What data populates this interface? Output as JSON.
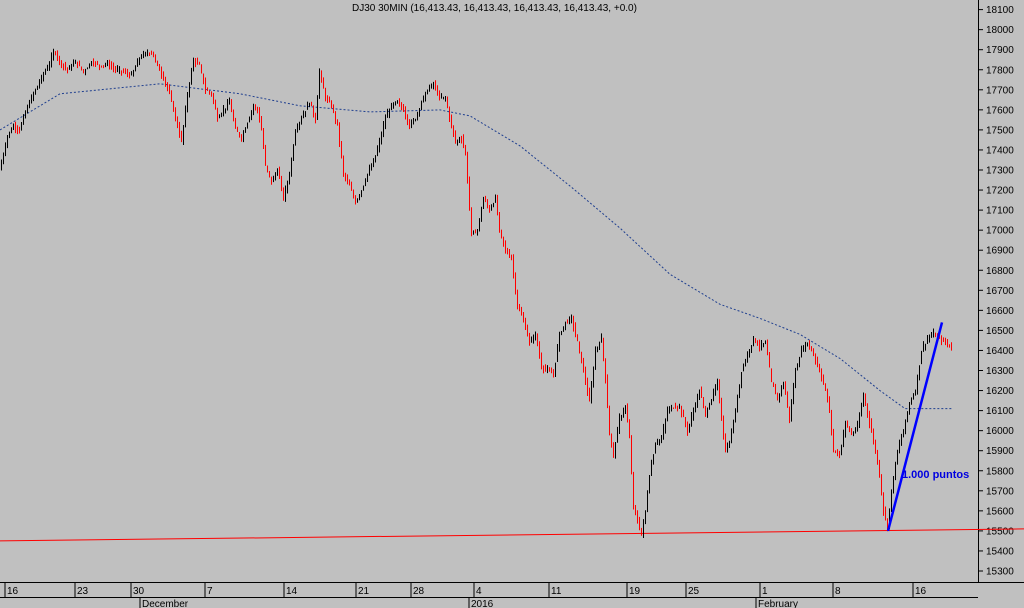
{
  "title": "DJ30 30MIN (16,413.43, 16,413.43, 16,413.43, 16,413.43, +0.0)",
  "colors": {
    "background": "#c0c0c0",
    "up_candle": "#000000",
    "down_candle": "#ff0000",
    "moving_average": "#1f3f8f",
    "support_line": "#ff0000",
    "trend_line": "#0000ff",
    "annotation": "#0000e0"
  },
  "chart_data": {
    "type": "candlestick",
    "title": "DJ30 30MIN (16,413.43, 16,413.43, 16,413.43, 16,413.43, +0.0)",
    "ylim": [
      15240,
      18140
    ],
    "y_ticks": [
      15300,
      15400,
      15500,
      15600,
      15700,
      15800,
      15900,
      16000,
      16100,
      16200,
      16300,
      16400,
      16500,
      16600,
      16700,
      16800,
      16900,
      17000,
      17100,
      17200,
      17300,
      17400,
      17500,
      17600,
      17700,
      17800,
      17900,
      18000,
      18100
    ],
    "x_tick_labels": [
      "16",
      "23",
      "30",
      "7",
      "14",
      "21",
      "28",
      "4",
      "11",
      "19",
      "25",
      "1",
      "8",
      "16"
    ],
    "x_month_labels": [
      "December",
      "2016",
      "February"
    ],
    "grid": false,
    "price_path": [
      [
        0,
        17300
      ],
      [
        3,
        17360
      ],
      [
        8,
        17470
      ],
      [
        14,
        17520
      ],
      [
        20,
        17500
      ],
      [
        26,
        17590
      ],
      [
        32,
        17660
      ],
      [
        38,
        17720
      ],
      [
        44,
        17780
      ],
      [
        50,
        17830
      ],
      [
        55,
        17900
      ],
      [
        60,
        17840
      ],
      [
        68,
        17800
      ],
      [
        76,
        17840
      ],
      [
        84,
        17790
      ],
      [
        92,
        17840
      ],
      [
        100,
        17820
      ],
      [
        108,
        17830
      ],
      [
        116,
        17800
      ],
      [
        124,
        17790
      ],
      [
        132,
        17770
      ],
      [
        140,
        17860
      ],
      [
        146,
        17880
      ],
      [
        152,
        17890
      ],
      [
        158,
        17820
      ],
      [
        164,
        17760
      ],
      [
        170,
        17680
      ],
      [
        176,
        17560
      ],
      [
        182,
        17440
      ],
      [
        188,
        17680
      ],
      [
        194,
        17850
      ],
      [
        200,
        17820
      ],
      [
        206,
        17700
      ],
      [
        212,
        17680
      ],
      [
        218,
        17560
      ],
      [
        224,
        17600
      ],
      [
        230,
        17640
      ],
      [
        236,
        17500
      ],
      [
        242,
        17460
      ],
      [
        248,
        17540
      ],
      [
        254,
        17620
      ],
      [
        258,
        17600
      ],
      [
        262,
        17500
      ],
      [
        266,
        17320
      ],
      [
        272,
        17240
      ],
      [
        278,
        17300
      ],
      [
        284,
        17160
      ],
      [
        290,
        17280
      ],
      [
        296,
        17500
      ],
      [
        302,
        17560
      ],
      [
        310,
        17640
      ],
      [
        316,
        17550
      ],
      [
        320,
        17790
      ],
      [
        326,
        17660
      ],
      [
        332,
        17620
      ],
      [
        338,
        17520
      ],
      [
        344,
        17280
      ],
      [
        350,
        17220
      ],
      [
        356,
        17140
      ],
      [
        362,
        17200
      ],
      [
        368,
        17280
      ],
      [
        374,
        17340
      ],
      [
        380,
        17440
      ],
      [
        386,
        17560
      ],
      [
        392,
        17620
      ],
      [
        398,
        17640
      ],
      [
        404,
        17600
      ],
      [
        410,
        17520
      ],
      [
        416,
        17560
      ],
      [
        422,
        17640
      ],
      [
        428,
        17700
      ],
      [
        434,
        17730
      ],
      [
        440,
        17660
      ],
      [
        446,
        17660
      ],
      [
        450,
        17560
      ],
      [
        456,
        17440
      ],
      [
        462,
        17460
      ],
      [
        466,
        17380
      ],
      [
        472,
        16980
      ],
      [
        478,
        17000
      ],
      [
        484,
        17160
      ],
      [
        490,
        17100
      ],
      [
        496,
        17160
      ],
      [
        500,
        17000
      ],
      [
        506,
        16900
      ],
      [
        512,
        16860
      ],
      [
        518,
        16620
      ],
      [
        524,
        16550
      ],
      [
        530,
        16440
      ],
      [
        536,
        16480
      ],
      [
        542,
        16320
      ],
      [
        548,
        16300
      ],
      [
        554,
        16280
      ],
      [
        560,
        16480
      ],
      [
        566,
        16540
      ],
      [
        572,
        16560
      ],
      [
        578,
        16440
      ],
      [
        584,
        16300
      ],
      [
        590,
        16140
      ],
      [
        596,
        16400
      ],
      [
        602,
        16460
      ],
      [
        606,
        16260
      ],
      [
        610,
        15980
      ],
      [
        614,
        15880
      ],
      [
        620,
        16060
      ],
      [
        626,
        16120
      ],
      [
        630,
        15960
      ],
      [
        634,
        15620
      ],
      [
        638,
        15550
      ],
      [
        642,
        15480
      ],
      [
        646,
        15600
      ],
      [
        650,
        15780
      ],
      [
        656,
        15940
      ],
      [
        662,
        15960
      ],
      [
        668,
        16100
      ],
      [
        674,
        16120
      ],
      [
        680,
        16120
      ],
      [
        688,
        16000
      ],
      [
        694,
        16100
      ],
      [
        700,
        16200
      ],
      [
        706,
        16080
      ],
      [
        712,
        16160
      ],
      [
        718,
        16240
      ],
      [
        722,
        16060
      ],
      [
        726,
        15900
      ],
      [
        730,
        15940
      ],
      [
        736,
        16100
      ],
      [
        742,
        16300
      ],
      [
        748,
        16380
      ],
      [
        754,
        16460
      ],
      [
        760,
        16420
      ],
      [
        766,
        16440
      ],
      [
        772,
        16240
      ],
      [
        778,
        16160
      ],
      [
        784,
        16240
      ],
      [
        790,
        16060
      ],
      [
        796,
        16300
      ],
      [
        802,
        16400
      ],
      [
        808,
        16440
      ],
      [
        814,
        16380
      ],
      [
        820,
        16300
      ],
      [
        826,
        16200
      ],
      [
        830,
        16100
      ],
      [
        834,
        15900
      ],
      [
        840,
        15880
      ],
      [
        846,
        16040
      ],
      [
        852,
        15980
      ],
      [
        858,
        16020
      ],
      [
        864,
        16180
      ],
      [
        870,
        16040
      ],
      [
        876,
        15900
      ],
      [
        880,
        15780
      ],
      [
        884,
        15600
      ],
      [
        888,
        15520
      ],
      [
        892,
        15700
      ],
      [
        898,
        15900
      ],
      [
        904,
        16000
      ],
      [
        910,
        16140
      ],
      [
        916,
        16200
      ],
      [
        922,
        16400
      ],
      [
        928,
        16460
      ],
      [
        934,
        16480
      ],
      [
        940,
        16460
      ],
      [
        946,
        16440
      ],
      [
        952,
        16413
      ]
    ],
    "moving_average": [
      [
        0,
        17500
      ],
      [
        60,
        17680
      ],
      [
        120,
        17710
      ],
      [
        160,
        17730
      ],
      [
        240,
        17680
      ],
      [
        300,
        17620
      ],
      [
        370,
        17590
      ],
      [
        440,
        17600
      ],
      [
        470,
        17570
      ],
      [
        520,
        17420
      ],
      [
        570,
        17220
      ],
      [
        620,
        17010
      ],
      [
        670,
        16780
      ],
      [
        720,
        16630
      ],
      [
        760,
        16560
      ],
      [
        800,
        16480
      ],
      [
        840,
        16360
      ],
      [
        880,
        16200
      ],
      [
        905,
        16110
      ],
      [
        930,
        16110
      ],
      [
        952,
        16110
      ]
    ],
    "support_line": [
      [
        0,
        15450
      ],
      [
        1024,
        15510
      ]
    ],
    "trend_line": [
      [
        888,
        15500
      ],
      [
        942,
        16540
      ]
    ],
    "annotations": [
      "1.000 puntos"
    ]
  }
}
